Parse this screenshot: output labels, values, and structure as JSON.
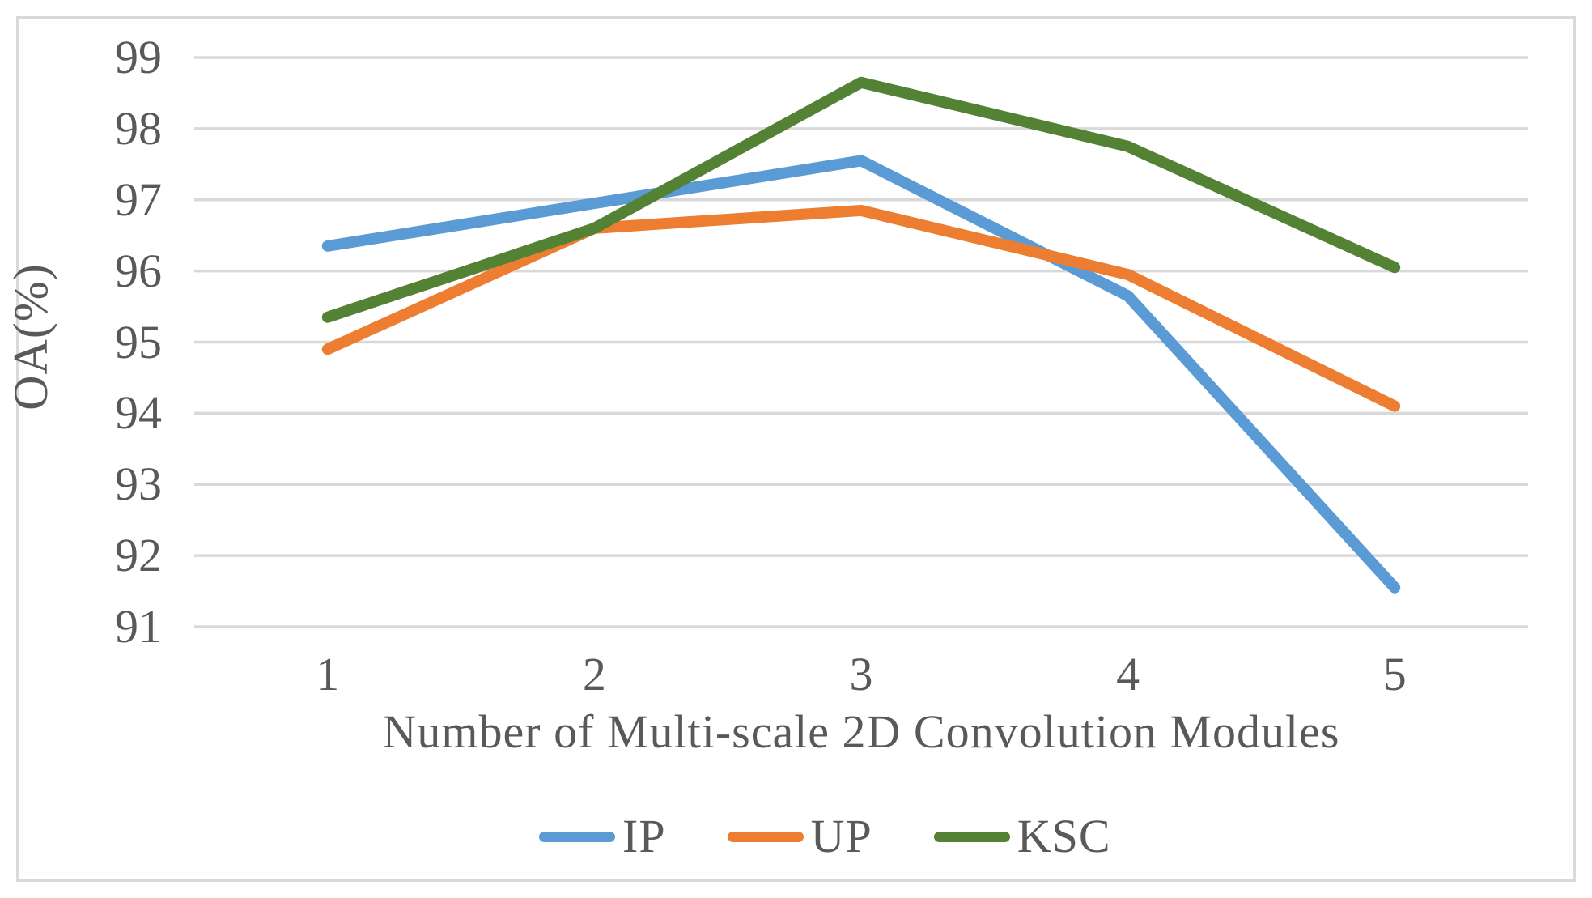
{
  "chart_data": {
    "type": "line",
    "title": "",
    "xlabel": "Number of Multi-scale 2D Convolution Modules",
    "ylabel": "OA(%)",
    "categories": [
      "1",
      "2",
      "3",
      "4",
      "5"
    ],
    "series": [
      {
        "name": "IP",
        "color": "#5B9BD5",
        "values": [
          96.35,
          96.95,
          97.55,
          95.65,
          91.55
        ]
      },
      {
        "name": "UP",
        "color": "#ED7D31",
        "values": [
          94.9,
          96.6,
          96.85,
          95.95,
          94.1
        ]
      },
      {
        "name": "KSC",
        "color": "#548235",
        "values": [
          95.35,
          96.6,
          98.65,
          97.75,
          96.05
        ]
      }
    ],
    "yticks": [
      99,
      98,
      97,
      96,
      95,
      94,
      93,
      92,
      91
    ],
    "ylim": [
      91,
      99
    ],
    "grid": "horizontal-only",
    "gridline_color": "#D9D9D9",
    "text_color": "#595959",
    "frame_color": "#D9D9D9",
    "legend_position": "bottom"
  }
}
